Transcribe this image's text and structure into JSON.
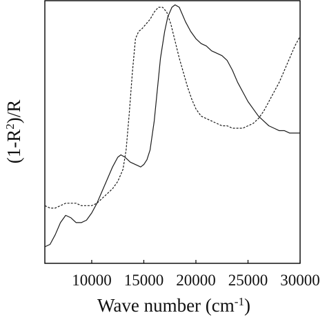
{
  "chart_data": {
    "type": "line",
    "xlabel": "Wave number (cm",
    "xlabel_sup": "-1",
    "xlabel_end": ")",
    "ylabel": "(1-R",
    "ylabel_sup": "2",
    "ylabel_end": ")/R",
    "xlim": [
      5500,
      30000
    ],
    "ylim": [
      0,
      1
    ],
    "y_ticks_shown": false,
    "grid": false,
    "legend": "none",
    "x_ticks": [
      10000,
      15000,
      20000,
      25000,
      30000
    ],
    "x_tick_labels": [
      "10000",
      "15000",
      "20000",
      "25000",
      "30000"
    ],
    "series": [
      {
        "style": "solid",
        "color": "#1a1a1a",
        "x": [
          5500,
          6000,
          6500,
          7000,
          7500,
          8000,
          8500,
          9000,
          9500,
          10000,
          10500,
          11000,
          11500,
          12000,
          12500,
          12800,
          13200,
          13700,
          14200,
          14700,
          15000,
          15300,
          15600,
          16000,
          16300,
          16600,
          17000,
          17300,
          17700,
          18000,
          18400,
          18700,
          19000,
          19500,
          20000,
          20500,
          21000,
          21500,
          22000,
          22500,
          23000,
          23500,
          24000,
          24500,
          25000,
          25500,
          26000,
          26500,
          27000,
          27500,
          28000,
          28500,
          29000,
          29500,
          30000
        ],
        "y": [
          0.0,
          0.01,
          0.05,
          0.1,
          0.13,
          0.12,
          0.1,
          0.1,
          0.11,
          0.14,
          0.18,
          0.23,
          0.28,
          0.33,
          0.37,
          0.38,
          0.37,
          0.35,
          0.34,
          0.33,
          0.34,
          0.36,
          0.4,
          0.52,
          0.65,
          0.78,
          0.89,
          0.95,
          0.99,
          1.0,
          0.99,
          0.96,
          0.93,
          0.89,
          0.86,
          0.84,
          0.83,
          0.81,
          0.8,
          0.79,
          0.77,
          0.73,
          0.68,
          0.64,
          0.6,
          0.57,
          0.54,
          0.52,
          0.5,
          0.49,
          0.48,
          0.48,
          0.47,
          0.47,
          0.47
        ]
      },
      {
        "style": "dashed",
        "color": "#1a1a1a",
        "x": [
          5500,
          6000,
          6500,
          7000,
          7500,
          8000,
          8500,
          9000,
          9500,
          10000,
          10500,
          11000,
          11500,
          12000,
          12500,
          13000,
          13300,
          13600,
          13900,
          14200,
          14500,
          14800,
          15200,
          15600,
          16000,
          16400,
          16800,
          17200,
          17600,
          18000,
          18400,
          18800,
          19200,
          19600,
          20000,
          20500,
          21000,
          21500,
          22000,
          22500,
          23000,
          23500,
          24000,
          24500,
          25000,
          25500,
          26000,
          26500,
          27000,
          27500,
          28000,
          28500,
          29000,
          29500,
          30000
        ],
        "y": [
          0.17,
          0.16,
          0.16,
          0.17,
          0.18,
          0.18,
          0.18,
          0.17,
          0.17,
          0.17,
          0.18,
          0.2,
          0.22,
          0.24,
          0.27,
          0.32,
          0.4,
          0.55,
          0.72,
          0.86,
          0.89,
          0.9,
          0.92,
          0.94,
          0.97,
          0.99,
          0.99,
          0.97,
          0.92,
          0.85,
          0.78,
          0.72,
          0.66,
          0.61,
          0.57,
          0.54,
          0.53,
          0.52,
          0.51,
          0.5,
          0.5,
          0.49,
          0.49,
          0.49,
          0.5,
          0.51,
          0.53,
          0.56,
          0.6,
          0.64,
          0.68,
          0.73,
          0.78,
          0.83,
          0.87
        ]
      }
    ]
  }
}
